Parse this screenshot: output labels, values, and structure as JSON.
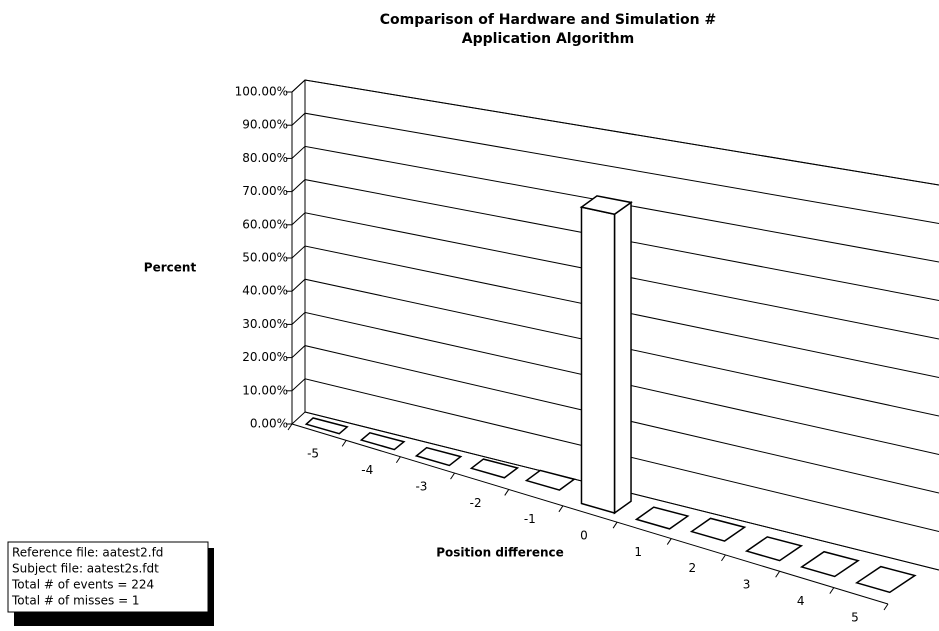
{
  "chart_data": {
    "type": "bar3d",
    "title": [
      "Comparison of Hardware and Simulation #",
      "Application Algorithm"
    ],
    "y_label": "Percent",
    "x_label": "Position difference",
    "categories": [
      -5,
      -4,
      -3,
      -2,
      -1,
      0,
      1,
      2,
      3,
      4,
      5
    ],
    "values": [
      0,
      0,
      0,
      1,
      2,
      83,
      0,
      1,
      0,
      0,
      0
    ],
    "color": "#ffffff",
    "ylim": [
      0,
      100
    ],
    "yticks": [
      {
        "value": 0,
        "label": "0.00%"
      },
      {
        "value": 10,
        "label": "10.00%"
      },
      {
        "value": 20,
        "label": "20.00%"
      },
      {
        "value": 30,
        "label": "30.00%"
      },
      {
        "value": 40,
        "label": "40.00%"
      },
      {
        "value": 50,
        "label": "50.00%"
      },
      {
        "value": 60,
        "label": "60.00%"
      },
      {
        "value": 70,
        "label": "70.00%"
      },
      {
        "value": 80,
        "label": "80.00%"
      },
      {
        "value": 90,
        "label": "90.00%"
      },
      {
        "value": 100,
        "label": "100.00%"
      }
    ],
    "grid": true,
    "annotations": [
      "Reference file: aatest2.fd",
      "Subject file: aatest2s.fdt",
      "Total # of events = 224",
      "Total # of misses = 1"
    ]
  }
}
